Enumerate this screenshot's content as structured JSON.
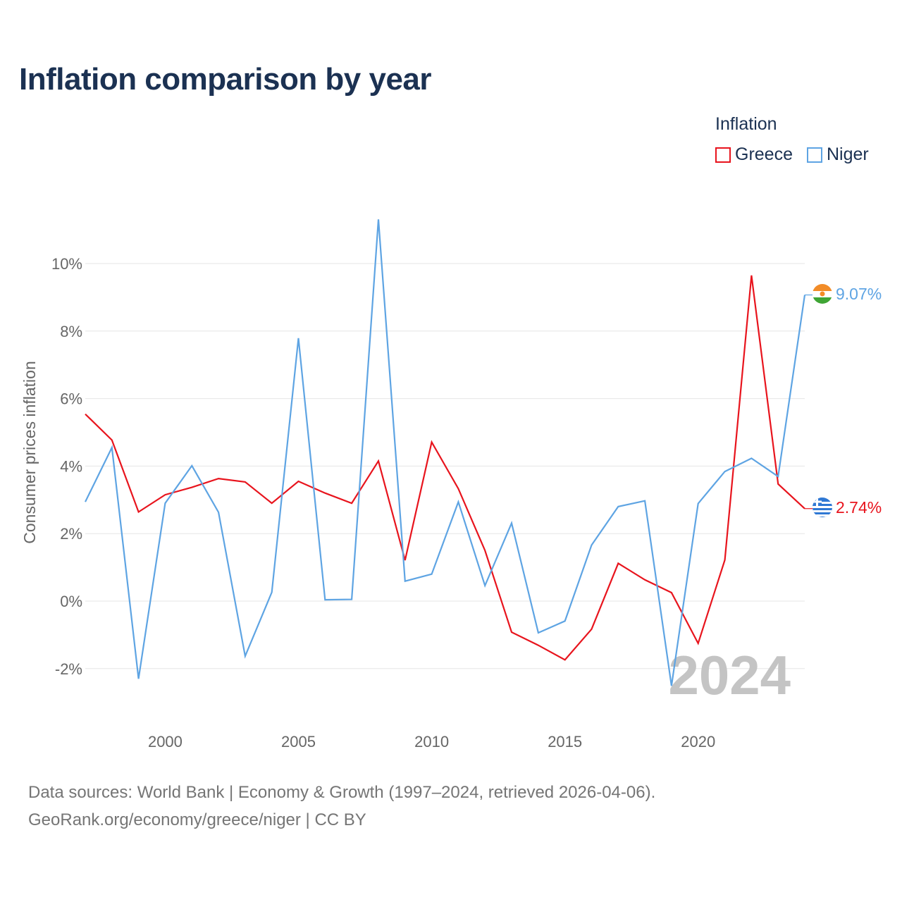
{
  "title": "Inflation comparison by year",
  "legend": {
    "title": "Inflation",
    "items": [
      {
        "label": "Greece",
        "color": "#e8141d"
      },
      {
        "label": "Niger",
        "color": "#5ea4e3"
      }
    ]
  },
  "source": {
    "line1": "Data sources: World Bank | Economy & Growth (1997–2024, retrieved 2026-04-06).",
    "line2": "GeoRank.org/economy/greece/niger | CC BY"
  },
  "chart_data": {
    "type": "line",
    "title": "Inflation comparison by year",
    "xlabel": "",
    "ylabel": "Consumer prices inflation",
    "xlim": [
      1997,
      2024
    ],
    "ylim": [
      -3,
      11
    ],
    "x_ticks": [
      2000,
      2005,
      2010,
      2015,
      2020
    ],
    "y_ticks": [
      -2,
      0,
      2,
      4,
      6,
      8,
      10
    ],
    "y_tick_labels": [
      "-2%",
      "0%",
      "2%",
      "4%",
      "6%",
      "8%",
      "10%"
    ],
    "grid": true,
    "legend_position": "top-right",
    "year_watermark": "2024",
    "x": [
      1997,
      1998,
      1999,
      2000,
      2001,
      2002,
      2003,
      2004,
      2005,
      2006,
      2007,
      2008,
      2009,
      2010,
      2011,
      2012,
      2013,
      2014,
      2015,
      2016,
      2017,
      2018,
      2019,
      2020,
      2021,
      2022,
      2023,
      2024
    ],
    "series": [
      {
        "name": "Greece",
        "color": "#e8141d",
        "end_label": "2.74%",
        "flag": "greece-flag",
        "values": [
          5.54,
          4.77,
          2.64,
          3.15,
          3.37,
          3.63,
          3.53,
          2.9,
          3.55,
          3.2,
          2.9,
          4.15,
          1.21,
          4.71,
          3.33,
          1.5,
          -0.92,
          -1.31,
          -1.74,
          -0.83,
          1.12,
          0.63,
          0.25,
          -1.25,
          1.22,
          9.65,
          3.47,
          2.74
        ]
      },
      {
        "name": "Niger",
        "color": "#5ea4e3",
        "end_label": "9.07%",
        "flag": "niger-flag",
        "values": [
          2.94,
          4.55,
          -2.3,
          2.9,
          4.01,
          2.63,
          -1.63,
          0.26,
          7.79,
          0.04,
          0.05,
          11.31,
          0.59,
          0.8,
          2.94,
          0.46,
          2.31,
          -0.94,
          -0.59,
          1.66,
          2.8,
          2.97,
          -2.51,
          2.89,
          3.84,
          4.23,
          3.69,
          9.07
        ]
      }
    ]
  }
}
